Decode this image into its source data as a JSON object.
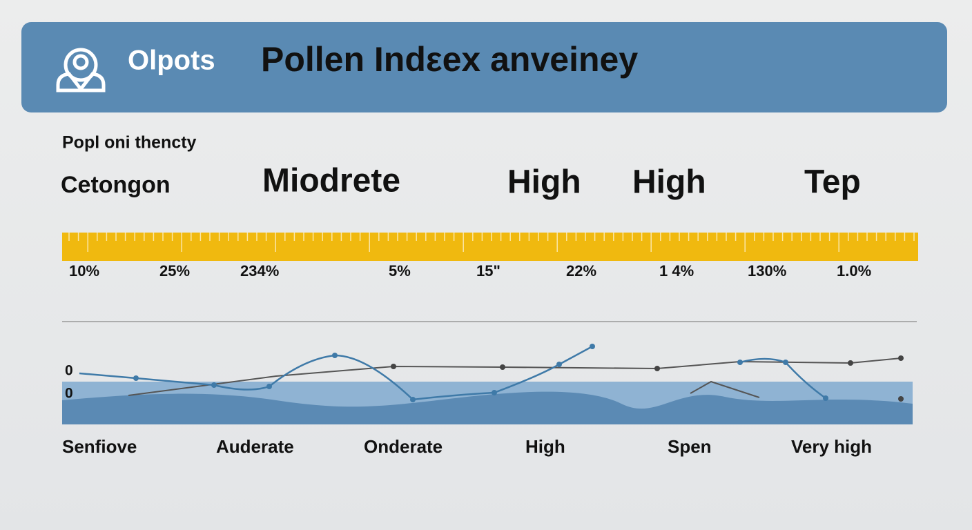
{
  "header": {
    "brand": "Olpots",
    "title": "Pollen Indεex anveiney"
  },
  "subtitle": "Popl oni thencty",
  "levels": [
    "Cetongon",
    "Miodrete",
    "High",
    "High",
    "Tep"
  ],
  "scale_labels": [
    "10%",
    "25%",
    "234%",
    "5%",
    "15\"",
    "22%",
    "1 4%",
    "130%",
    "1.0%"
  ],
  "axis_labels": [
    "0",
    "0"
  ],
  "categories": [
    "Senfiove",
    "Auderate",
    "Onderate",
    "High",
    "Spen",
    "Very high"
  ]
}
